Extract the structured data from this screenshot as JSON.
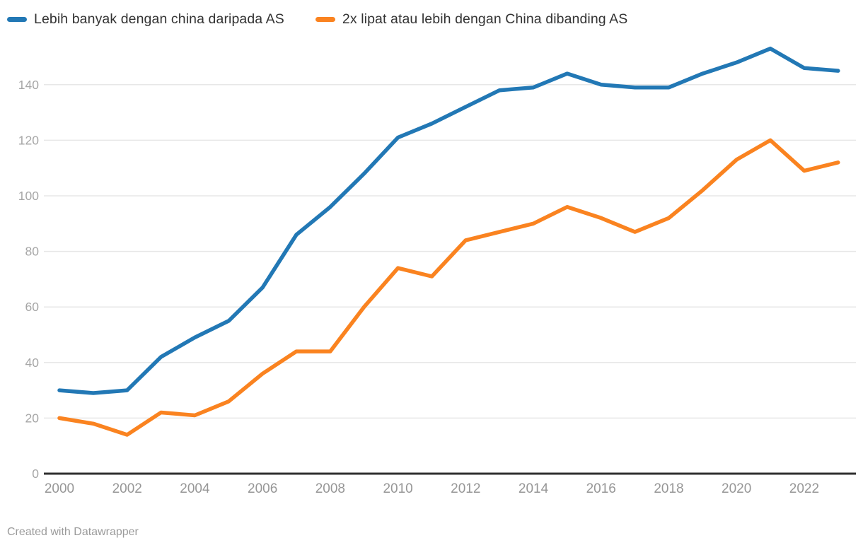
{
  "chart_data": {
    "type": "line",
    "x": [
      2000,
      2001,
      2002,
      2003,
      2004,
      2005,
      2006,
      2007,
      2008,
      2009,
      2010,
      2011,
      2012,
      2013,
      2014,
      2015,
      2016,
      2017,
      2018,
      2019,
      2020,
      2021,
      2022,
      2023
    ],
    "series": [
      {
        "name": "Lebih banyak dengan china daripada AS",
        "color": "#2278b5",
        "values": [
          30,
          29,
          30,
          42,
          49,
          55,
          67,
          86,
          96,
          108,
          121,
          126,
          132,
          138,
          139,
          144,
          140,
          139,
          139,
          144,
          148,
          153,
          146,
          145
        ]
      },
      {
        "name": "2x lipat atau lebih dengan China dibanding AS",
        "color": "#fa8320",
        "values": [
          20,
          18,
          14,
          22,
          21,
          26,
          36,
          44,
          44,
          60,
          74,
          71,
          84,
          87,
          90,
          96,
          92,
          87,
          92,
          102,
          113,
          120,
          109,
          112
        ]
      }
    ],
    "y_ticks": [
      0,
      20,
      40,
      60,
      80,
      100,
      120,
      140
    ],
    "x_ticks": [
      2000,
      2002,
      2004,
      2006,
      2008,
      2010,
      2012,
      2014,
      2016,
      2018,
      2020,
      2022
    ],
    "ylim": [
      0,
      155
    ],
    "grid": true,
    "legend_position": "top",
    "title": "",
    "xlabel": "",
    "ylabel": ""
  },
  "footer": {
    "text": "Created with Datawrapper"
  }
}
